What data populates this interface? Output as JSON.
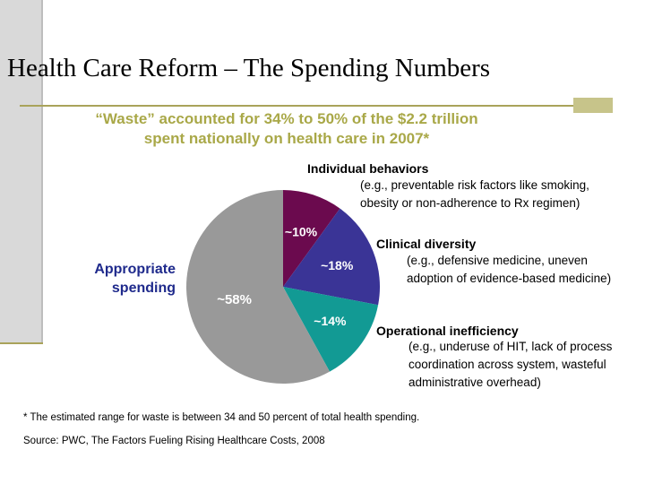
{
  "slide": {
    "title": "Health Care Reform – The Spending Numbers",
    "subtitle": [
      "“Waste” accounted for 34% to 50% of the $2.2 trillion",
      "spent nationally on health care in 2007*"
    ],
    "footnote": "* The estimated range for waste is between 34 and 50 percent of total health spending.",
    "source": "Source: PWC, The Factors Fueling Rising Healthcare Costs, 2008"
  },
  "labels": {
    "individual": {
      "heading": "Individual behaviors",
      "desc": [
        "(e.g., preventable risk factors like smoking,",
        "obesity or non-adherence to Rx regimen)"
      ]
    },
    "clinical": {
      "heading": "Clinical diversity",
      "desc": [
        "(e.g., defensive medicine, uneven",
        "adoption of evidence-based medicine)"
      ]
    },
    "operational": {
      "heading": "Operational inefficiency",
      "desc": [
        "(e.g., underuse of HIT, lack of process",
        "coordination across system, wasteful",
        "administrative overhead)"
      ]
    },
    "appropriate": [
      "Appropriate",
      "spending"
    ]
  },
  "colors": {
    "individual": "#6b0a4e",
    "clinical": "#3a3496",
    "operational": "#129a94",
    "appropriate": "#999999",
    "title_accent": "#a9a848",
    "appropriate_label": "#1f2a8c"
  },
  "chart_data": {
    "type": "pie",
    "slices": [
      {
        "key": "individual",
        "label": "~10%",
        "value": 10
      },
      {
        "key": "clinical",
        "label": "~18%",
        "value": 18
      },
      {
        "key": "operational",
        "label": "~14%",
        "value": 14
      },
      {
        "key": "appropriate",
        "label": "~58%",
        "value": 58
      }
    ]
  }
}
